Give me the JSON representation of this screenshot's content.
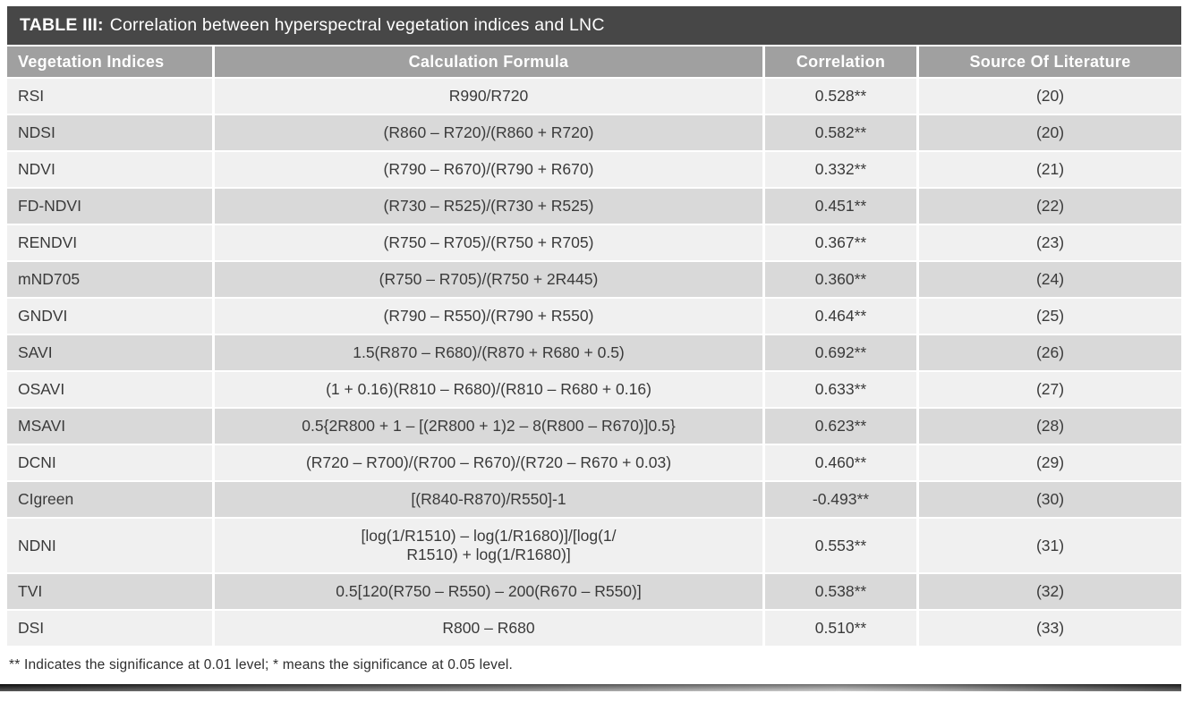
{
  "title": {
    "label": "TABLE III:",
    "text": "Correlation between hyperspectral vegetation indices and LNC"
  },
  "columns": [
    "Vegetation Indices",
    "Calculation Formula",
    "Correlation",
    "Source Of Literature"
  ],
  "rows": [
    {
      "index": "RSI",
      "formula": "R990/R720",
      "correlation": "0.528**",
      "source": "(20)"
    },
    {
      "index": "NDSI",
      "formula": "(R860 – R720)/(R860 + R720)",
      "correlation": "0.582**",
      "source": "(20)"
    },
    {
      "index": "NDVI",
      "formula": "(R790 – R670)/(R790 + R670)",
      "correlation": "0.332**",
      "source": "(21)"
    },
    {
      "index": "FD-NDVI",
      "formula": "(R730 – R525)/(R730 + R525)",
      "correlation": "0.451**",
      "source": "(22)"
    },
    {
      "index": "RENDVI",
      "formula": "(R750 – R705)/(R750 + R705)",
      "correlation": "0.367**",
      "source": "(23)"
    },
    {
      "index": "mND705",
      "formula": "(R750 – R705)/(R750 + 2R445)",
      "correlation": "0.360**",
      "source": "(24)"
    },
    {
      "index": "GNDVI",
      "formula": "(R790 – R550)/(R790 + R550)",
      "correlation": "0.464**",
      "source": "(25)"
    },
    {
      "index": "SAVI",
      "formula": "1.5(R870 – R680)/(R870 + R680 + 0.5)",
      "correlation": "0.692**",
      "source": "(26)"
    },
    {
      "index": "OSAVI",
      "formula": "(1 + 0.16)(R810 – R680)/(R810 – R680 + 0.16)",
      "correlation": "0.633**",
      "source": "(27)"
    },
    {
      "index": "MSAVI",
      "formula": "0.5{2R800 + 1 – [(2R800 + 1)2 – 8(R800 – R670)]0.5}",
      "correlation": "0.623**",
      "source": "(28)"
    },
    {
      "index": "DCNI",
      "formula": "(R720 – R700)/(R700 – R670)/(R720 – R670 + 0.03)",
      "correlation": "0.460**",
      "source": "(29)"
    },
    {
      "index": "CIgreen",
      "formula": "[(R840-R870)/R550]-1",
      "correlation": "-0.493**",
      "source": "(30)"
    },
    {
      "index": "NDNI",
      "formula": "[log(1/R1510) – log(1/R1680)]/[log(1/\nR1510) + log(1/R1680)]",
      "correlation": "0.553**",
      "source": "(31)"
    },
    {
      "index": "TVI",
      "formula": "0.5[120(R750 – R550) – 200(R670 – R550)]",
      "correlation": "0.538**",
      "source": "(32)"
    },
    {
      "index": "DSI",
      "formula": "R800 – R680",
      "correlation": "0.510**",
      "source": "(33)"
    }
  ],
  "footnote": "** Indicates the significance at 0.01 level; * means the significance at 0.05 level.",
  "colors": {
    "title_bar_bg": "#474747",
    "header_bg": "#a0a0a0",
    "header_text": "#ffffff",
    "row_light_bg": "#f0f0f0",
    "row_dark_bg": "#d9d9d9",
    "text": "#3a3a3a"
  }
}
